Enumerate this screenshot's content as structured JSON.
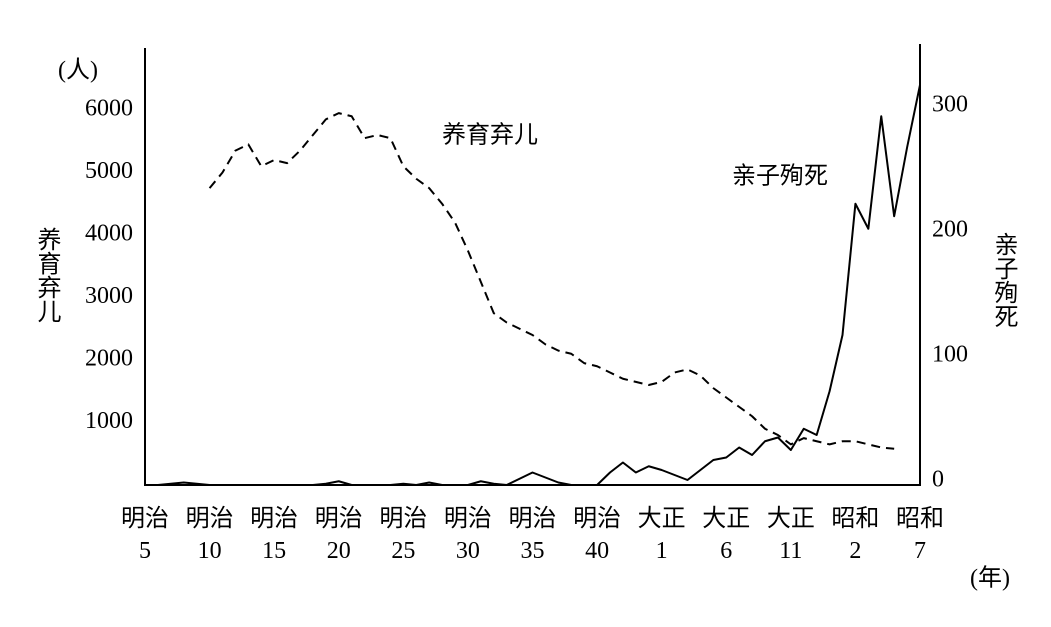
{
  "chart_data": {
    "type": "line",
    "y_label": "养育弃儿",
    "y2_label": "亲子殉死",
    "y_unit": "(人)",
    "x_unit": "(年)",
    "xlim": [
      1872,
      1932
    ],
    "ylim": [
      0,
      7000
    ],
    "y2lim": [
      0,
      350
    ],
    "xticks": [
      {
        "value": 1872,
        "label": "明治 5"
      },
      {
        "value": 1877,
        "label": "明治 10"
      },
      {
        "value": 1882,
        "label": "明治 15"
      },
      {
        "value": 1887,
        "label": "明治 20"
      },
      {
        "value": 1892,
        "label": "明治 25"
      },
      {
        "value": 1897,
        "label": "明治 30"
      },
      {
        "value": 1902,
        "label": "明治 35"
      },
      {
        "value": 1907,
        "label": "明治 40"
      },
      {
        "value": 1912,
        "label": "大正 1"
      },
      {
        "value": 1917,
        "label": "大正 6"
      },
      {
        "value": 1922,
        "label": "大正 11"
      },
      {
        "value": 1927,
        "label": "昭和 2"
      },
      {
        "value": 1932,
        "label": "昭和 7"
      }
    ],
    "yticks": [
      1000,
      2000,
      3000,
      4000,
      5000,
      6000
    ],
    "y2ticks": [
      0,
      100,
      200,
      300
    ],
    "series": [
      {
        "name": "养育弃儿",
        "color": "#000000",
        "dash": true,
        "x": [
          1877,
          1878,
          1879,
          1880,
          1881,
          1882,
          1883,
          1884,
          1885,
          1886,
          1887,
          1888,
          1889,
          1890,
          1891,
          1892,
          1893,
          1894,
          1895,
          1896,
          1897,
          1898,
          1899,
          1900,
          1901,
          1902,
          1903,
          1904,
          1905,
          1906,
          1907,
          1908,
          1909,
          1910,
          1911,
          1912,
          1913,
          1914,
          1915,
          1916,
          1917,
          1918,
          1919,
          1920,
          1921,
          1922,
          1923,
          1924,
          1925,
          1926,
          1927,
          1928,
          1929,
          1930
        ],
        "values": [
          4750,
          5000,
          5350,
          5450,
          5100,
          5200,
          5150,
          5350,
          5600,
          5850,
          5950,
          5900,
          5550,
          5600,
          5550,
          5100,
          4900,
          4750,
          4500,
          4200,
          3750,
          3250,
          2750,
          2600,
          2500,
          2400,
          2250,
          2150,
          2100,
          1950,
          1900,
          1800,
          1700,
          1650,
          1600,
          1650,
          1800,
          1850,
          1750,
          1550,
          1400,
          1250,
          1100,
          900,
          800,
          650,
          750,
          700,
          650,
          700,
          700,
          650,
          600,
          580
        ]
      },
      {
        "name": "亲子殉死",
        "color": "#000000",
        "dash": false,
        "axis": "y2",
        "x": [
          1872,
          1873,
          1874,
          1875,
          1876,
          1877,
          1878,
          1879,
          1880,
          1881,
          1882,
          1883,
          1884,
          1885,
          1886,
          1887,
          1888,
          1889,
          1890,
          1891,
          1892,
          1893,
          1894,
          1895,
          1896,
          1897,
          1898,
          1899,
          1900,
          1901,
          1902,
          1903,
          1904,
          1905,
          1906,
          1907,
          1908,
          1909,
          1910,
          1911,
          1912,
          1913,
          1914,
          1915,
          1916,
          1917,
          1918,
          1919,
          1920,
          1921,
          1922,
          1923,
          1924,
          1925,
          1926,
          1927,
          1928,
          1929,
          1930,
          1931,
          1932
        ],
        "values": [
          0,
          0,
          1,
          2,
          1,
          0,
          0,
          0,
          0,
          0,
          0,
          0,
          0,
          0,
          1,
          3,
          0,
          0,
          0,
          0,
          1,
          0,
          2,
          0,
          0,
          0,
          3,
          1,
          0,
          5,
          10,
          6,
          2,
          0,
          0,
          0,
          10,
          18,
          10,
          15,
          12,
          8,
          4,
          12,
          20,
          22,
          30,
          24,
          35,
          38,
          28,
          45,
          40,
          75,
          120,
          225,
          205,
          295,
          215,
          270,
          320
        ]
      }
    ]
  }
}
